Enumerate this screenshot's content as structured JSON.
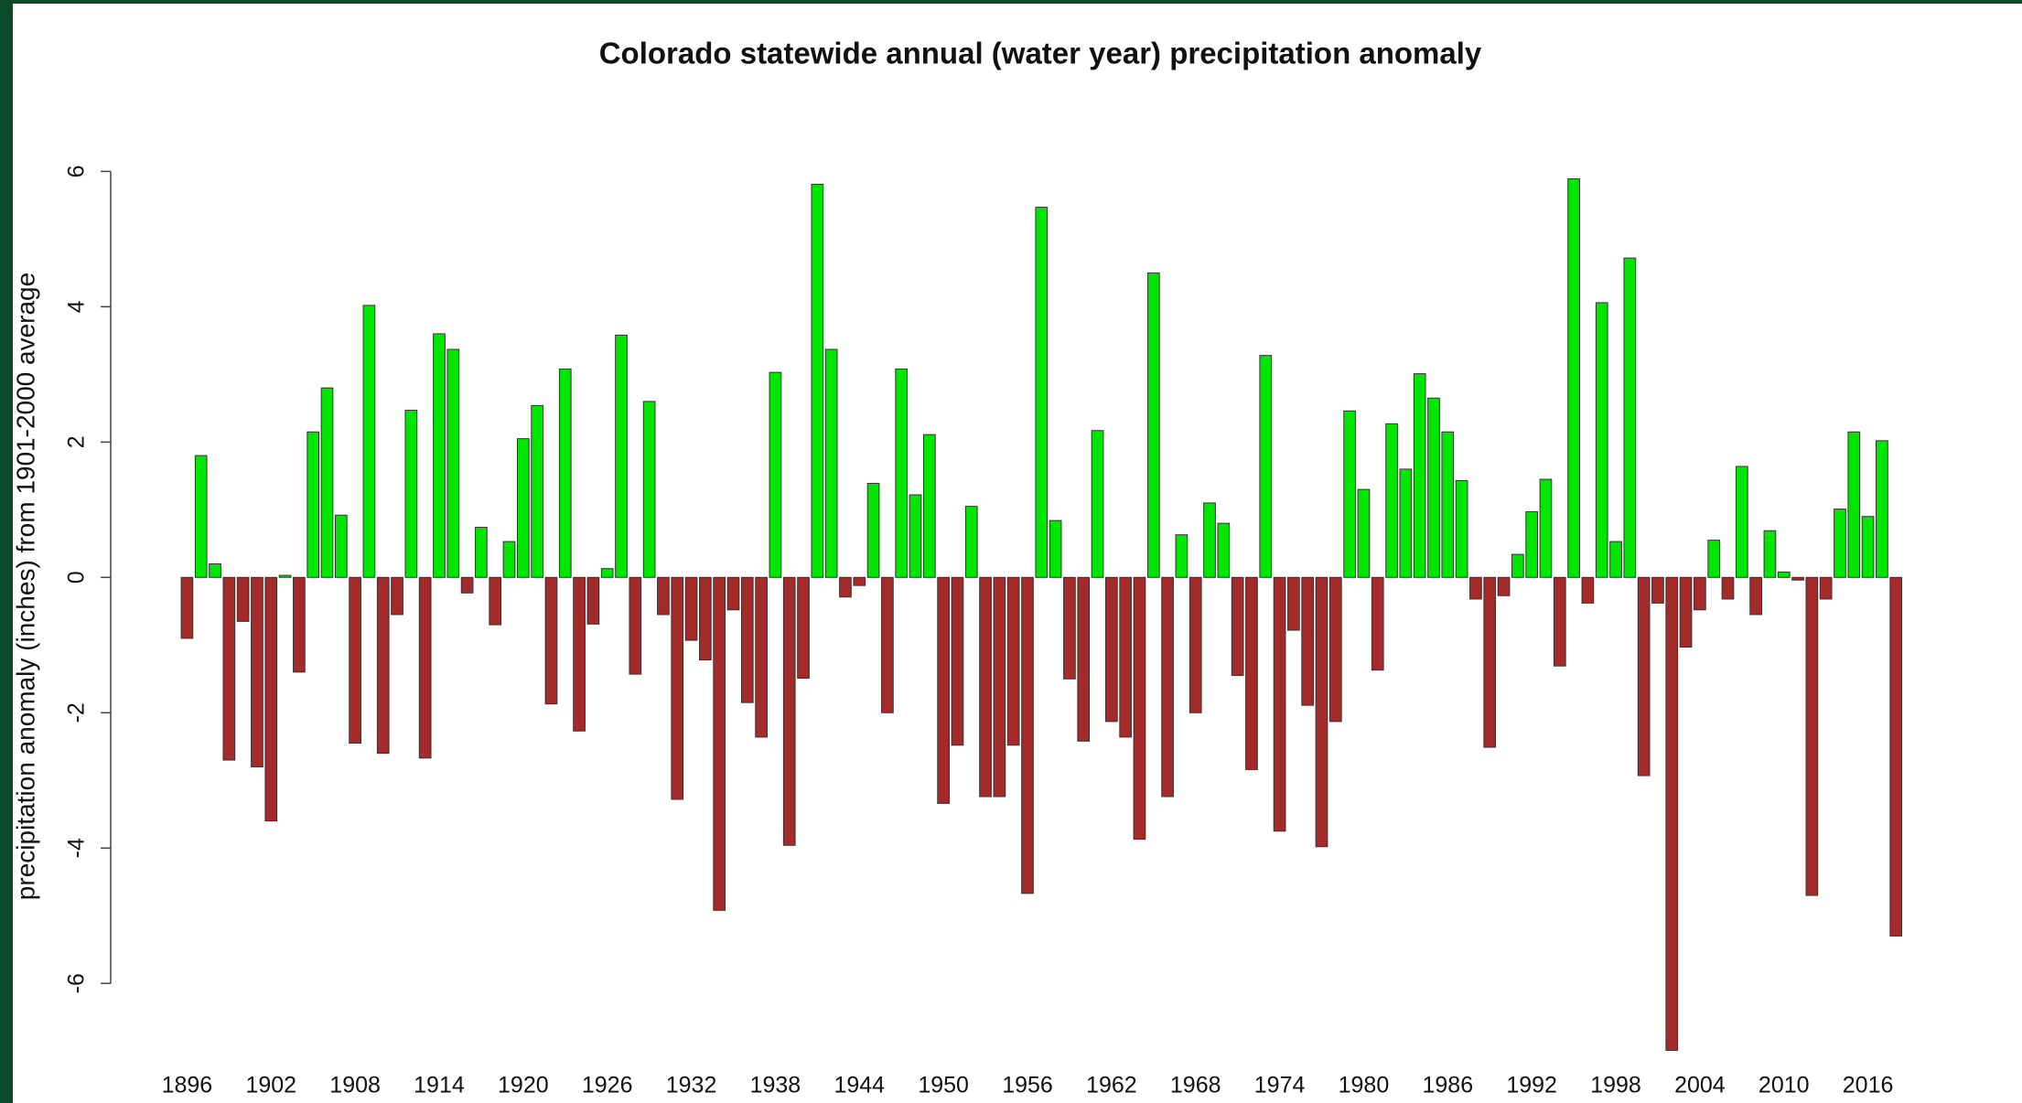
{
  "chart_data": {
    "type": "bar",
    "title": "Colorado statewide annual (water year) precipitation anomaly",
    "y_label": "precipitation anomaly (inches) from 1901-2000 average",
    "categories": [
      "1896",
      null,
      null,
      null,
      null,
      null,
      "1902",
      null,
      null,
      null,
      null,
      null,
      "1908",
      null,
      null,
      null,
      null,
      null,
      "1914",
      null,
      null,
      null,
      null,
      null,
      "1920",
      null,
      null,
      null,
      null,
      null,
      "1926",
      null,
      null,
      null,
      null,
      null,
      "1932",
      null,
      null,
      null,
      null,
      null,
      "1938",
      null,
      null,
      null,
      null,
      null,
      "1944",
      null,
      null,
      null,
      null,
      null,
      "1950",
      null,
      null,
      null,
      null,
      null,
      "1956",
      null,
      null,
      null,
      null,
      null,
      "1962",
      null,
      null,
      null,
      null,
      null,
      "1968",
      null,
      null,
      null,
      null,
      null,
      "1974",
      null,
      null,
      null,
      null,
      null,
      "1980",
      null,
      null,
      null,
      null,
      null,
      "1986",
      null,
      null,
      null,
      null,
      null,
      "1992",
      null,
      null,
      null,
      null,
      null,
      "1998",
      null,
      null,
      null,
      null,
      null,
      "2004",
      null,
      null,
      null,
      null,
      null,
      "2010",
      null,
      null,
      null,
      null,
      null,
      "2016",
      null,
      null
    ],
    "values": [
      -0.9,
      1.8,
      0.2,
      -2.7,
      -0.65,
      -2.8,
      -3.6,
      0.03,
      -1.4,
      2.15,
      2.8,
      0.92,
      -2.45,
      4.02,
      -2.6,
      -0.55,
      2.47,
      -2.67,
      3.6,
      3.37,
      -0.23,
      0.74,
      -0.7,
      0.53,
      2.05,
      2.54,
      -1.87,
      3.08,
      -2.27,
      -0.69,
      0.13,
      3.58,
      -1.43,
      2.6,
      -0.55,
      -3.28,
      -0.93,
      -1.22,
      -4.92,
      -0.48,
      -1.85,
      -2.36,
      3.03,
      -3.96,
      -1.49,
      5.81,
      3.37,
      -0.29,
      -0.12,
      1.39,
      -2.0,
      3.08,
      1.22,
      2.11,
      -3.34,
      -2.48,
      1.05,
      -3.24,
      -3.24,
      -2.48,
      -4.67,
      5.47,
      0.84,
      -1.5,
      -2.42,
      2.17,
      -2.13,
      -2.36,
      -3.87,
      4.5,
      -3.24,
      0.63,
      -2.0,
      1.1,
      0.8,
      -1.45,
      -2.84,
      3.28,
      -3.75,
      -0.78,
      -1.89,
      -3.98,
      -2.13,
      2.46,
      1.3,
      -1.37,
      2.27,
      1.6,
      3.01,
      2.65,
      2.15,
      1.43,
      -0.32,
      -2.51,
      -0.27,
      0.34,
      0.97,
      1.45,
      -1.31,
      5.89,
      -0.38,
      4.06,
      0.53,
      4.72,
      -2.93,
      -0.38,
      -6.99,
      -1.03,
      -0.48,
      0.55,
      -0.32,
      1.64,
      -0.55,
      0.69,
      0.08,
      -0.04,
      -4.7,
      -0.32,
      1.01,
      2.15,
      0.9,
      2.02,
      -5.3
    ],
    "colors": {
      "positive": "#00e600",
      "negative": "#a52a2a"
    },
    "ylim": [
      -7.2,
      6.2
    ],
    "yticks": [
      -6,
      -4,
      -2,
      0,
      2,
      4,
      6
    ],
    "grid": false
  }
}
